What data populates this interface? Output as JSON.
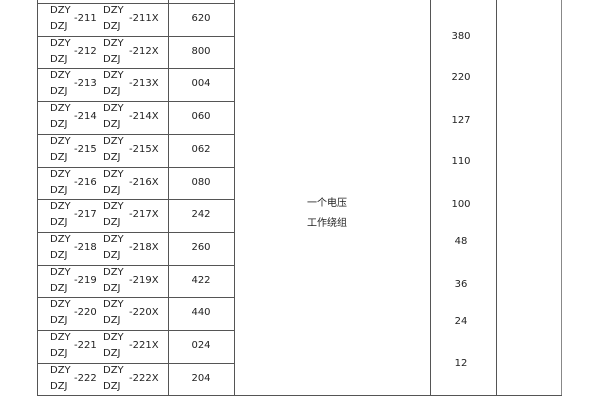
{
  "rows": [
    {
      "a_top": "DZY",
      "a_bot": "DZJ",
      "a_num": "-211",
      "b_top": "DZY",
      "b_bot": "DZJ",
      "b_num": "-211X",
      "code": "620"
    },
    {
      "a_top": "DZY",
      "a_bot": "DZJ",
      "a_num": "-212",
      "b_top": "DZY",
      "b_bot": "DZJ",
      "b_num": "-212X",
      "code": "800"
    },
    {
      "a_top": "DZY",
      "a_bot": "DZJ",
      "a_num": "-213",
      "b_top": "DZY",
      "b_bot": "DZJ",
      "b_num": "-213X",
      "code": "004"
    },
    {
      "a_top": "DZY",
      "a_bot": "DZJ",
      "a_num": "-214",
      "b_top": "DZY",
      "b_bot": "DZJ",
      "b_num": "-214X",
      "code": "060"
    },
    {
      "a_top": "DZY",
      "a_bot": "DZJ",
      "a_num": "-215",
      "b_top": "DZY",
      "b_bot": "DZJ",
      "b_num": "-215X",
      "code": "062"
    },
    {
      "a_top": "DZY",
      "a_bot": "DZJ",
      "a_num": "-216",
      "b_top": "DZY",
      "b_bot": "DZJ",
      "b_num": "-216X",
      "code": "080"
    },
    {
      "a_top": "DZY",
      "a_bot": "DZJ",
      "a_num": "-217",
      "b_top": "DZY",
      "b_bot": "DZJ",
      "b_num": "-217X",
      "code": "242"
    },
    {
      "a_top": "DZY",
      "a_bot": "DZJ",
      "a_num": "-218",
      "b_top": "DZY",
      "b_bot": "DZJ",
      "b_num": "-218X",
      "code": "260"
    },
    {
      "a_top": "DZY",
      "a_bot": "DZJ",
      "a_num": "-219",
      "b_top": "DZY",
      "b_bot": "DZJ",
      "b_num": "-219X",
      "code": "422"
    },
    {
      "a_top": "DZY",
      "a_bot": "DZJ",
      "a_num": "-220",
      "b_top": "DZY",
      "b_bot": "DZJ",
      "b_num": "-220X",
      "code": "440"
    },
    {
      "a_top": "DZY",
      "a_bot": "DZJ",
      "a_num": "-221",
      "b_top": "DZY",
      "b_bot": "DZJ",
      "b_num": "-221X",
      "code": "024"
    },
    {
      "a_top": "DZY",
      "a_bot": "DZJ",
      "a_num": "-222",
      "b_top": "DZY",
      "b_bot": "DZJ",
      "b_num": "-222X",
      "code": "204"
    }
  ],
  "winding": {
    "line1": "一个电压",
    "line2": "工作绕组"
  },
  "voltages": [
    "380",
    "220",
    "127",
    "110",
    "100",
    "48",
    "36",
    "24",
    "12"
  ]
}
